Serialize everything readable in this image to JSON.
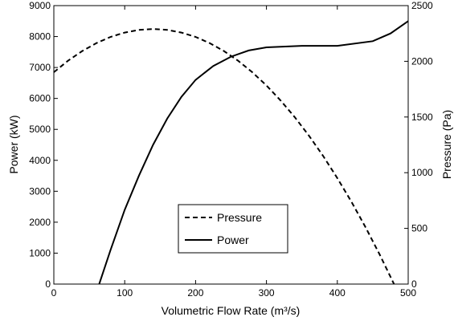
{
  "chart_data": {
    "type": "line",
    "xlabel": "Volumetric Flow Rate (m³/s)",
    "ylabel": "Power (kW)",
    "y2label": "Pressure (Pa)",
    "xlim": [
      0,
      500
    ],
    "xticks": [
      0,
      100,
      200,
      300,
      400,
      500
    ],
    "ylim": [
      0,
      9000
    ],
    "yticks": [
      0,
      1000,
      2000,
      3000,
      4000,
      5000,
      6000,
      7000,
      8000,
      9000
    ],
    "y2lim": [
      0,
      2500
    ],
    "y2ticks": [
      0,
      500,
      1000,
      1500,
      2000,
      2500
    ],
    "grid": false,
    "legend": "lower center",
    "series": [
      {
        "name": "Pressure",
        "color": "#000000",
        "dash": true,
        "axis": "y2",
        "x": [
          0,
          20,
          40,
          60,
          80,
          100,
          120,
          140,
          160,
          180,
          200,
          220,
          240,
          260,
          280,
          300,
          320,
          340,
          360,
          380,
          400,
          420,
          440,
          460,
          480
        ],
        "values": [
          1902,
          2005,
          2092,
          2163,
          2219,
          2258,
          2282,
          2290,
          2282,
          2258,
          2219,
          2163,
          2092,
          2005,
          1902,
          1783,
          1648,
          1498,
          1332,
          1150,
          951,
          738,
          508,
          262,
          0
        ]
      },
      {
        "name": "Power",
        "color": "#000000",
        "dash": false,
        "x": [
          64,
          80,
          100,
          120,
          140,
          160,
          180,
          200,
          225,
          250,
          275,
          300,
          350,
          400,
          450,
          475,
          500
        ],
        "values": [
          0,
          1100,
          2400,
          3500,
          4500,
          5350,
          6050,
          6600,
          7050,
          7350,
          7550,
          7650,
          7700,
          7700,
          7850,
          8100,
          8500
        ]
      }
    ]
  }
}
